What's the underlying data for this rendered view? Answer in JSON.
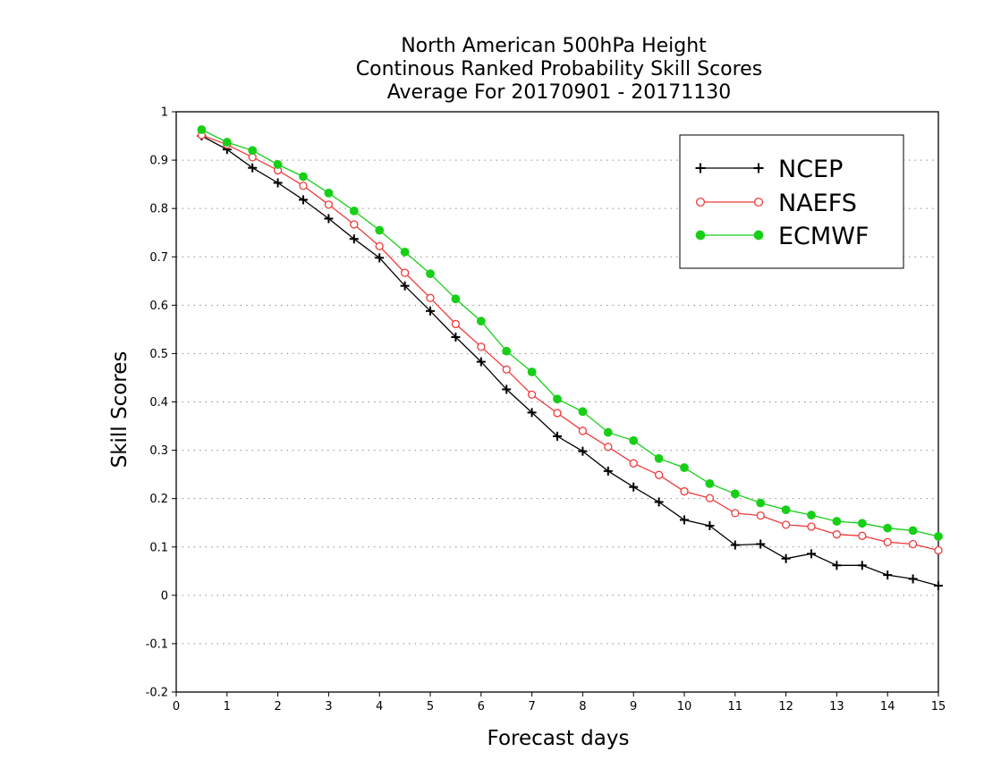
{
  "chart_data": {
    "type": "line",
    "title_lines": [
      "North American 500hPa Height",
      "Continous Ranked Probability Skill Scores",
      "Average For 20170901 - 20171130"
    ],
    "xlabel": "Forecast days",
    "ylabel": "Skill Scores",
    "xlim": [
      0,
      15
    ],
    "ylim": [
      -0.2,
      1
    ],
    "x_ticks": [
      "0",
      "1",
      "2",
      "3",
      "4",
      "5",
      "6",
      "7",
      "8",
      "9",
      "10",
      "11",
      "12",
      "13",
      "14",
      "15"
    ],
    "y_ticks": [
      "-0.2",
      "-0.1",
      "0",
      "0.1",
      "0.2",
      "0.3",
      "0.4",
      "0.5",
      "0.6",
      "0.7",
      "0.8",
      "0.9",
      "1"
    ],
    "grid": "dotted-horizontal",
    "legend_position": "top-right",
    "x": [
      0.5,
      1,
      1.5,
      2,
      2.5,
      3,
      3.5,
      4,
      4.5,
      5,
      5.5,
      6,
      6.5,
      7,
      7.5,
      8,
      8.5,
      9,
      9.5,
      10,
      10.5,
      11,
      11.5,
      12,
      12.5,
      13,
      13.5,
      14,
      14.5,
      15
    ],
    "series": [
      {
        "name": "NCEP",
        "color": "#000000",
        "marker": "plus",
        "values": [
          0.95,
          0.922,
          0.884,
          0.853,
          0.818,
          0.779,
          0.737,
          0.698,
          0.64,
          0.588,
          0.534,
          0.483,
          0.426,
          0.378,
          0.329,
          0.298,
          0.257,
          0.224,
          0.193,
          0.156,
          0.144,
          0.104,
          0.106,
          0.076,
          0.086,
          0.062,
          0.062,
          0.042,
          0.034,
          0.02
        ]
      },
      {
        "name": "NAEFS",
        "color": "#ef3b3b",
        "marker": "open-circle",
        "values": [
          0.952,
          0.932,
          0.906,
          0.879,
          0.847,
          0.808,
          0.767,
          0.722,
          0.667,
          0.615,
          0.561,
          0.514,
          0.467,
          0.415,
          0.377,
          0.34,
          0.307,
          0.273,
          0.249,
          0.215,
          0.201,
          0.17,
          0.165,
          0.146,
          0.142,
          0.126,
          0.123,
          0.11,
          0.106,
          0.093
        ]
      },
      {
        "name": "ECMWF",
        "color": "#17cf17",
        "marker": "filled-circle",
        "values": [
          0.963,
          0.937,
          0.92,
          0.891,
          0.866,
          0.832,
          0.795,
          0.755,
          0.71,
          0.665,
          0.613,
          0.567,
          0.505,
          0.462,
          0.406,
          0.38,
          0.337,
          0.32,
          0.283,
          0.264,
          0.231,
          0.21,
          0.191,
          0.177,
          0.166,
          0.153,
          0.149,
          0.139,
          0.134,
          0.122
        ]
      }
    ]
  }
}
